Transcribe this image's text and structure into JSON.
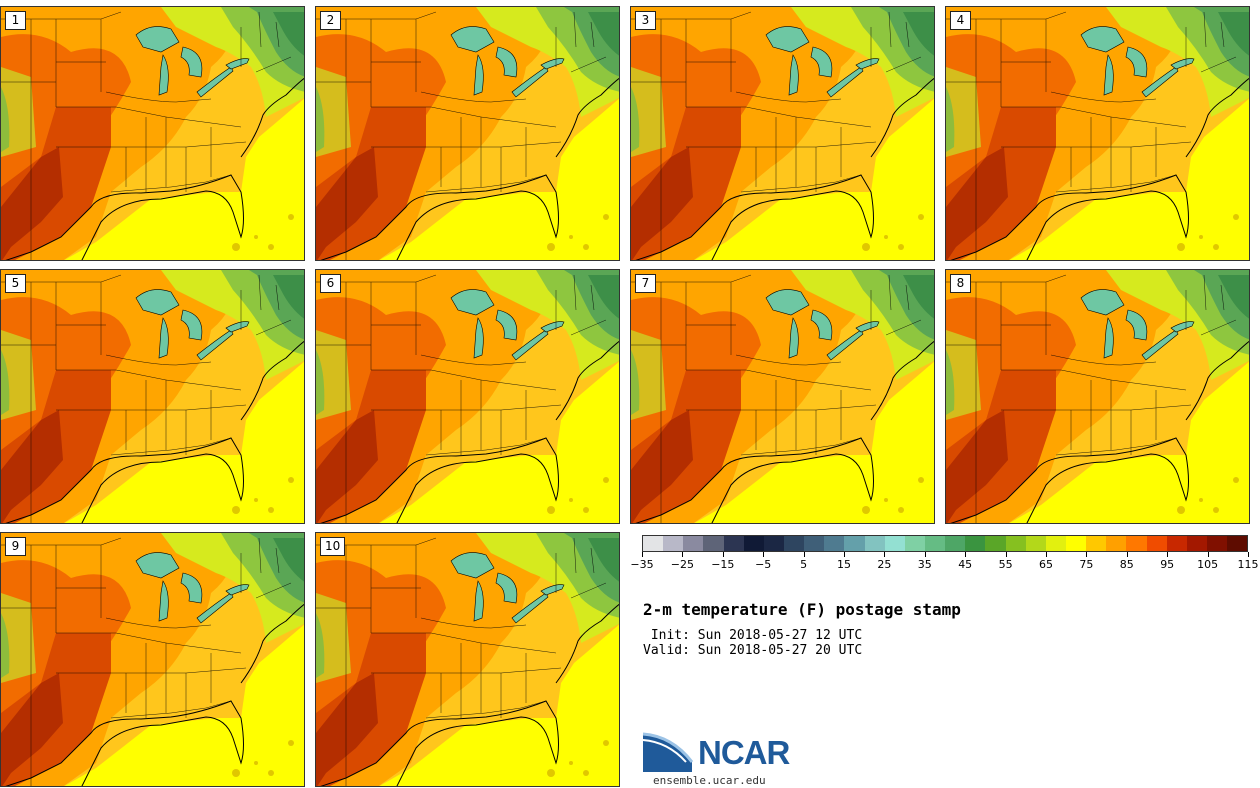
{
  "figure": {
    "title": "2-m temperature (F) postage stamp",
    "init": " Init: Sun 2018-05-27 12 UTC",
    "valid": "Valid: Sun 2018-05-27 20 UTC"
  },
  "members": [
    "1",
    "2",
    "3",
    "4",
    "5",
    "6",
    "7",
    "8",
    "9",
    "10"
  ],
  "colorbar": {
    "variable": "2-m temperature",
    "units": "F",
    "min": -35,
    "max": 120,
    "interval": 5,
    "tick_labels": [
      "−35",
      "−25",
      "−15",
      "−5",
      "5",
      "15",
      "25",
      "35",
      "45",
      "55",
      "65",
      "75",
      "85",
      "95",
      "105",
      "115"
    ],
    "colors": [
      "#e3e4e6",
      "#b8b8c8",
      "#8a8aa0",
      "#5e6478",
      "#2c3552",
      "#101a36",
      "#1b2744",
      "#2e4560",
      "#3f5f78",
      "#4f7b90",
      "#64a0aa",
      "#82c3c0",
      "#93e0d2",
      "#7fd0a4",
      "#65bc84",
      "#4ea666",
      "#3a9440",
      "#5aa628",
      "#86c020",
      "#b3d81a",
      "#e2f00f",
      "#ffff00",
      "#ffc800",
      "#ffa000",
      "#ff7800",
      "#f04c00",
      "#c82800",
      "#a31800",
      "#801000",
      "#5e0c00"
    ]
  },
  "map": {
    "region": "Eastern United States",
    "ocean_color": "#ffff00",
    "lake_color": "#6ec7a3",
    "colors": {
      "hot3": "#b42e00",
      "hot2": "#d94a00",
      "hot1": "#f26c00",
      "warm": "#ffa500",
      "mild": "#ffc61c",
      "cool": "#d6ea1e",
      "green1": "#8ec63f",
      "green2": "#5aa655",
      "green3": "#3d8f48"
    }
  },
  "logo": {
    "name": "NCAR",
    "url": "ensemble.ucar.edu"
  }
}
